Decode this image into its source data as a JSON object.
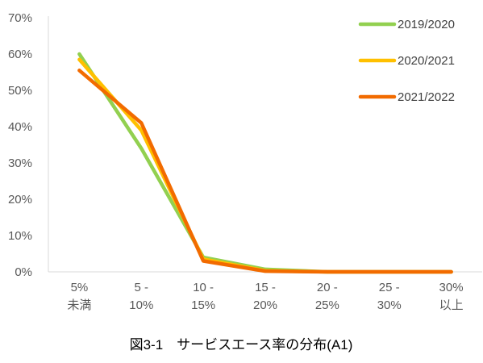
{
  "chart_data": {
    "type": "line",
    "categories": [
      [
        "5%",
        "未満"
      ],
      [
        "5 -",
        "10%"
      ],
      [
        "10 -",
        "15%"
      ],
      [
        "15 -",
        "20%"
      ],
      [
        "20 -",
        "25%"
      ],
      [
        "25 -",
        "30%"
      ],
      [
        "30%",
        "以上"
      ]
    ],
    "y_ticks": [
      "0%",
      "10%",
      "20%",
      "30%",
      "40%",
      "50%",
      "60%",
      "70%"
    ],
    "ylim": [
      0,
      70
    ],
    "grid": false,
    "legend_position": "top-right",
    "series": [
      {
        "name": "2019/2020",
        "color": "#92d050",
        "values": [
          60,
          34,
          4,
          0.7,
          0,
          0,
          0
        ]
      },
      {
        "name": "2020/2021",
        "color": "#ffc000",
        "values": [
          58.5,
          39,
          3.5,
          0.3,
          0,
          0,
          0
        ]
      },
      {
        "name": "2021/2022",
        "color": "#f26b00",
        "values": [
          55.5,
          41,
          3,
          0.2,
          0,
          0,
          0
        ]
      }
    ],
    "caption": "図3-1　サービスエース率の分布(A1)"
  }
}
